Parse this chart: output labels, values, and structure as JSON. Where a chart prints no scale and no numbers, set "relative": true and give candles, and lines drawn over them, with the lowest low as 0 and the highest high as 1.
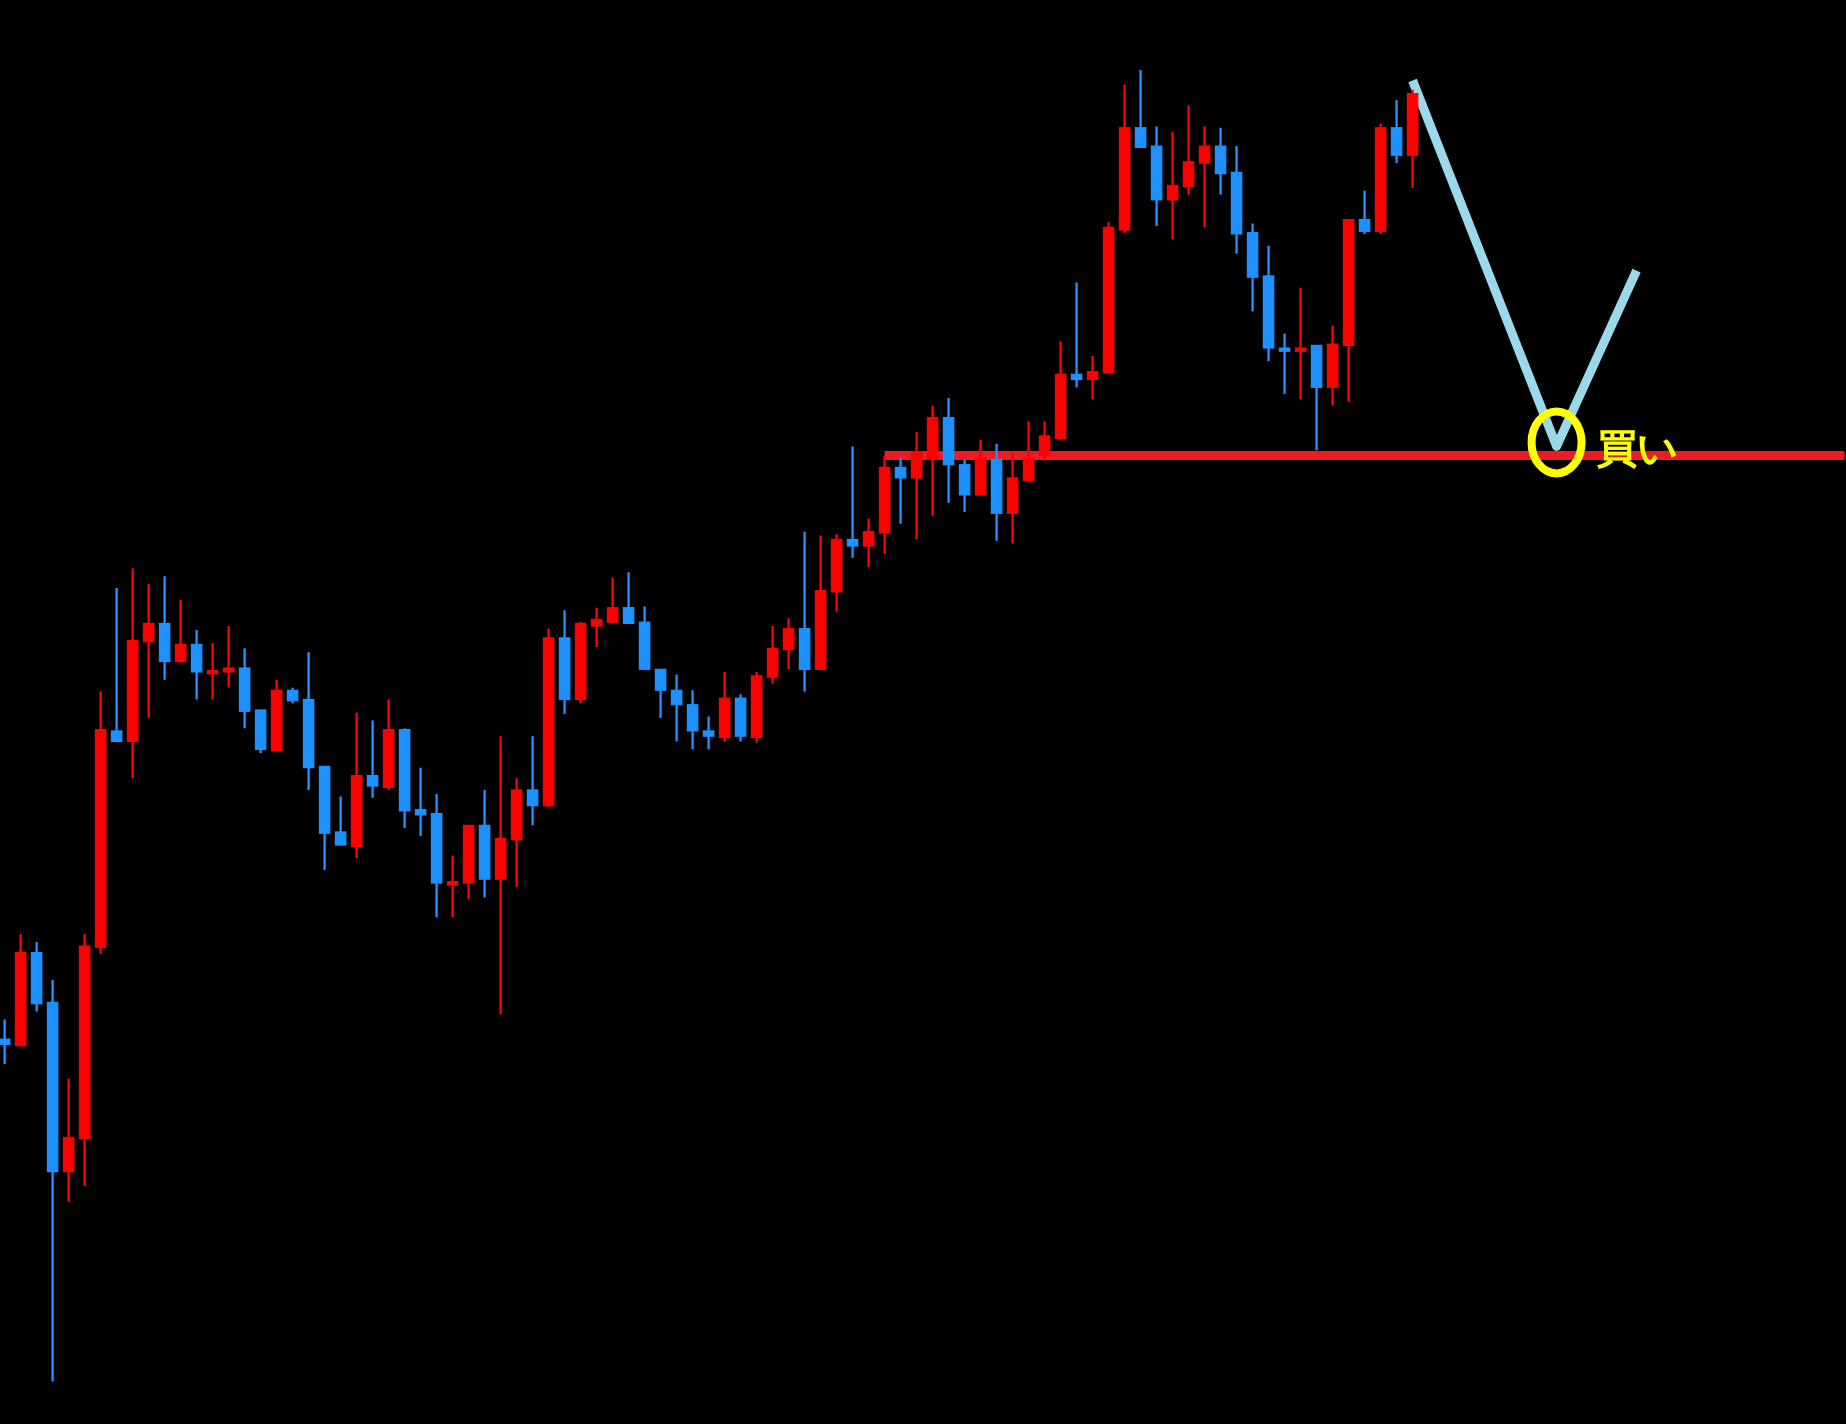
{
  "chart_data": {
    "type": "candlestick",
    "relative": true,
    "categories": [
      null,
      null,
      null,
      null,
      null,
      null,
      null,
      null,
      null,
      null,
      null,
      null,
      null,
      null,
      null,
      null,
      null,
      null,
      null,
      null,
      null,
      null,
      null,
      null,
      null,
      null,
      null,
      null,
      null,
      null,
      null,
      null,
      null,
      null,
      null,
      null,
      null,
      null,
      null,
      null,
      null,
      null,
      null,
      null,
      null,
      null,
      null,
      null,
      null,
      null,
      null,
      null,
      null,
      null,
      null,
      null,
      null,
      null,
      null,
      null,
      null,
      null,
      null,
      null,
      null,
      null,
      null,
      null,
      null,
      null,
      null,
      null,
      null,
      null,
      null,
      null,
      null,
      null,
      null,
      null,
      null,
      null,
      null,
      null,
      null,
      null,
      null,
      null,
      null,
      null,
      null,
      null,
      null,
      null,
      null,
      null,
      null,
      null,
      null,
      null,
      null,
      null,
      null,
      null,
      null,
      null,
      null,
      null,
      null,
      null,
      null,
      null,
      null,
      null,
      null,
      null
    ],
    "ohlc": [
      [
        0.261,
        0.276,
        0.242,
        0.257
      ],
      [
        0.256,
        0.341,
        0.256,
        0.327
      ],
      [
        0.327,
        0.335,
        0.282,
        0.288
      ],
      [
        0.289,
        0.306,
        0,
        0.16
      ],
      [
        0.16,
        0.231,
        0.137,
        0.186
      ],
      [
        0.185,
        0.341,
        0.149,
        0.332
      ],
      [
        0.331,
        0.526,
        0.326,
        0.497
      ],
      [
        0.496,
        0.605,
        0.488,
        0.488
      ],
      [
        0.488,
        0.62,
        0.46,
        0.565
      ],
      [
        0.564,
        0.608,
        0.506,
        0.578
      ],
      [
        0.578,
        0.614,
        0.535,
        0.549
      ],
      [
        0.549,
        0.596,
        0.548,
        0.562
      ],
      [
        0.562,
        0.573,
        0.52,
        0.541
      ],
      [
        0.541,
        0.563,
        0.52,
        0.542
      ],
      [
        0.541,
        0.576,
        0.529,
        0.544
      ],
      [
        0.544,
        0.559,
        0.498,
        0.511
      ],
      [
        0.512,
        0.512,
        0.479,
        0.482
      ],
      [
        0.481,
        0.535,
        0.481,
        0.527
      ],
      [
        0.527,
        0.529,
        0.517,
        0.519
      ],
      [
        0.52,
        0.556,
        0.451,
        0.468
      ],
      [
        0.469,
        0.469,
        0.39,
        0.418
      ],
      [
        0.419,
        0.446,
        0.409,
        0.409
      ],
      [
        0.408,
        0.51,
        0.399,
        0.462
      ],
      [
        0.462,
        0.504,
        0.445,
        0.454
      ],
      [
        0.453,
        0.52,
        0.451,
        0.497
      ],
      [
        0.497,
        0.498,
        0.422,
        0.435
      ],
      [
        0.436,
        0.468,
        0.416,
        0.432
      ],
      [
        0.433,
        0.448,
        0.354,
        0.38
      ],
      [
        0.38,
        0.401,
        0.354,
        0.381
      ],
      [
        0.38,
        0.424,
        0.368,
        0.424
      ],
      [
        0.424,
        0.451,
        0.369,
        0.383
      ],
      [
        0.383,
        0.492,
        0.28,
        0.414
      ],
      [
        0.413,
        0.46,
        0.377,
        0.451
      ],
      [
        0.451,
        0.492,
        0.424,
        0.439
      ],
      [
        0.439,
        0.574,
        0.438,
        0.567
      ],
      [
        0.567,
        0.588,
        0.509,
        0.52
      ],
      [
        0.52,
        0.579,
        0.517,
        0.578
      ],
      [
        0.576,
        0.59,
        0.56,
        0.581
      ],
      [
        0.579,
        0.613,
        0.578,
        0.59
      ],
      [
        0.59,
        0.617,
        0.578,
        0.578
      ],
      [
        0.579,
        0.591,
        0.543,
        0.543
      ],
      [
        0.543,
        0.543,
        0.506,
        0.527
      ],
      [
        0.527,
        0.539,
        0.488,
        0.516
      ],
      [
        0.516,
        0.527,
        0.482,
        0.496
      ],
      [
        0.496,
        0.507,
        0.482,
        0.492
      ],
      [
        0.491,
        0.541,
        0.488,
        0.521
      ],
      [
        0.521,
        0.524,
        0.488,
        0.492
      ],
      [
        0.491,
        0.541,
        0.487,
        0.538
      ],
      [
        0.537,
        0.576,
        0.532,
        0.559
      ],
      [
        0.558,
        0.582,
        0.543,
        0.574
      ],
      [
        0.574,
        0.648,
        0.526,
        0.543
      ],
      [
        0.543,
        0.645,
        0.543,
        0.603
      ],
      [
        0.602,
        0.646,
        0.587,
        0.642
      ],
      [
        0.642,
        0.713,
        0.628,
        0.637
      ],
      [
        0.637,
        0.658,
        0.621,
        0.648
      ],
      [
        0.647,
        0.706,
        0.631,
        0.697
      ],
      [
        0.697,
        0.704,
        0.654,
        0.689
      ],
      [
        0.689,
        0.724,
        0.642,
        0.709
      ],
      [
        0.703,
        0.744,
        0.66,
        0.735
      ],
      [
        0.735,
        0.75,
        0.67,
        0.699
      ],
      [
        0.699,
        0.703,
        0.663,
        0.676
      ],
      [
        0.676,
        0.718,
        0.676,
        0.704
      ],
      [
        0.703,
        0.715,
        0.641,
        0.662
      ],
      [
        0.662,
        0.709,
        0.639,
        0.689
      ],
      [
        0.687,
        0.732,
        0.686,
        0.704
      ],
      [
        0.706,
        0.732,
        0.702,
        0.721
      ],
      [
        0.719,
        0.793,
        0.718,
        0.768
      ],
      [
        0.768,
        0.838,
        0.758,
        0.764
      ],
      [
        0.764,
        0.782,
        0.749,
        0.77
      ],
      [
        0.769,
        0.884,
        0.769,
        0.88
      ],
      [
        0.878,
        0.989,
        0.876,
        0.956
      ],
      [
        0.956,
        1,
        0.941,
        0.941
      ],
      [
        0.942,
        0.957,
        0.881,
        0.901
      ],
      [
        0.901,
        0.953,
        0.871,
        0.912
      ],
      [
        0.911,
        0.973,
        0.905,
        0.93
      ],
      [
        0.929,
        0.957,
        0.88,
        0.942
      ],
      [
        0.942,
        0.956,
        0.905,
        0.921
      ],
      [
        0.922,
        0.942,
        0.86,
        0.875
      ],
      [
        0.876,
        0.883,
        0.816,
        0.842
      ],
      [
        0.843,
        0.866,
        0.778,
        0.788
      ],
      [
        0.788,
        0.799,
        0.753,
        0.787
      ],
      [
        0.787,
        0.834,
        0.749,
        0.788
      ],
      [
        0.79,
        0.79,
        0.71,
        0.758
      ],
      [
        0.758,
        0.805,
        0.744,
        0.791
      ],
      [
        0.79,
        0.886,
        0.747,
        0.886
      ],
      [
        0.886,
        0.908,
        0.875,
        0.877
      ],
      [
        0.877,
        0.959,
        0.875,
        0.956
      ],
      [
        0.956,
        0.977,
        0.929,
        0.935
      ],
      [
        0.935,
        0.985,
        0.91,
        0.982
      ],
      null,
      null,
      null,
      null,
      null,
      null,
      null,
      null,
      null,
      null,
      null,
      null,
      null,
      null,
      null,
      null,
      null,
      null,
      null,
      null,
      null,
      null,
      null,
      null,
      null,
      null,
      null
    ],
    "colors": [
      "#1e90ff",
      "#ff0000",
      "#1e90ff",
      "#1e90ff",
      "#ff0000",
      "#ff0000",
      "#ff0000",
      "#1e90ff",
      "#ff0000",
      "#ff0000",
      "#1e90ff",
      "#ff0000",
      "#1e90ff",
      "#ff0000",
      "#ff0000",
      "#1e90ff",
      "#1e90ff",
      "#ff0000",
      "#1e90ff",
      "#1e90ff",
      "#1e90ff",
      "#1e90ff",
      "#ff0000",
      "#1e90ff",
      "#ff0000",
      "#1e90ff",
      "#1e90ff",
      "#1e90ff",
      "#ff0000",
      "#ff0000",
      "#1e90ff",
      "#ff0000",
      "#ff0000",
      "#1e90ff",
      "#ff0000",
      "#1e90ff",
      "#ff0000",
      "#ff0000",
      "#ff0000",
      "#1e90ff",
      "#1e90ff",
      "#1e90ff",
      "#1e90ff",
      "#1e90ff",
      "#1e90ff",
      "#ff0000",
      "#1e90ff",
      "#ff0000",
      "#ff0000",
      "#ff0000",
      "#1e90ff",
      "#ff0000",
      "#ff0000",
      "#1e90ff",
      "#ff0000",
      "#ff0000",
      "#1e90ff",
      "#ff0000",
      "#ff0000",
      "#1e90ff",
      "#1e90ff",
      "#ff0000",
      "#1e90ff",
      "#ff0000",
      "#ff0000",
      "#ff0000",
      "#ff0000",
      "#1e90ff",
      "#ff0000",
      "#ff0000",
      "#ff0000",
      "#1e90ff",
      "#1e90ff",
      "#ff0000",
      "#ff0000",
      "#ff0000",
      "#1e90ff",
      "#1e90ff",
      "#1e90ff",
      "#1e90ff",
      "#1e90ff",
      "#ff0000",
      "#1e90ff",
      "#ff0000",
      "#ff0000",
      "#1e90ff",
      "#ff0000",
      "#1e90ff",
      "#ff0000",
      null,
      null,
      null,
      null,
      null,
      null,
      null,
      null,
      null,
      null,
      null,
      null,
      null,
      null,
      null,
      null,
      null,
      null,
      null,
      null,
      null,
      null,
      null,
      null,
      null,
      null,
      null
    ],
    "series": [
      {
        "type": "line",
        "color": "#99d9ea",
        "values": [
          null,
          null,
          null,
          null,
          null,
          null,
          null,
          null,
          null,
          null,
          null,
          null,
          null,
          null,
          null,
          null,
          null,
          null,
          null,
          null,
          null,
          null,
          null,
          null,
          null,
          null,
          null,
          null,
          null,
          null,
          null,
          null,
          null,
          null,
          null,
          null,
          null,
          null,
          null,
          null,
          null,
          null,
          null,
          null,
          null,
          null,
          null,
          null,
          null,
          null,
          null,
          null,
          null,
          null,
          null,
          null,
          null,
          null,
          null,
          null,
          null,
          null,
          null,
          null,
          null,
          null,
          null,
          null,
          null,
          null,
          null,
          null,
          null,
          null,
          null,
          null,
          null,
          null,
          null,
          null,
          null,
          null,
          null,
          null,
          null,
          null,
          null,
          null,
          0.992,
          null,
          null,
          null,
          null,
          null,
          null,
          null,
          null,
          0.713,
          null,
          null,
          null,
          null,
          0.847,
          null,
          null,
          null,
          null,
          null,
          null,
          null,
          null,
          null,
          null,
          null,
          null,
          null
        ]
      },
      {
        "type": "line",
        "color": "#ed1c24",
        "values": [
          null,
          null,
          null,
          null,
          null,
          null,
          null,
          null,
          null,
          null,
          null,
          null,
          null,
          null,
          null,
          null,
          null,
          null,
          null,
          null,
          null,
          null,
          null,
          null,
          null,
          null,
          null,
          null,
          null,
          null,
          null,
          null,
          null,
          null,
          null,
          null,
          null,
          null,
          null,
          null,
          null,
          null,
          null,
          null,
          null,
          null,
          null,
          null,
          null,
          null,
          null,
          null,
          null,
          null,
          null,
          0.706,
          null,
          null,
          null,
          null,
          null,
          null,
          null,
          null,
          null,
          null,
          null,
          null,
          null,
          null,
          null,
          null,
          null,
          null,
          null,
          null,
          null,
          null,
          null,
          null,
          null,
          null,
          null,
          null,
          null,
          null,
          null,
          null,
          null,
          null,
          null,
          null,
          null,
          null,
          null,
          null,
          null,
          null,
          null,
          null,
          null,
          null,
          null,
          null,
          null,
          null,
          null,
          null,
          null,
          null,
          null,
          null,
          null,
          null,
          null,
          0.706
        ]
      }
    ],
    "annotations": [
      {
        "text": "買い",
        "y": 0.713
      }
    ]
  }
}
